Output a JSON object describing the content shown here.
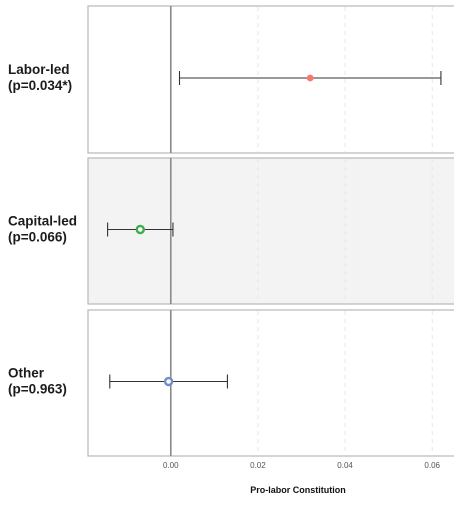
{
  "chart_data": {
    "type": "scatter",
    "subtype": "coefficient-plot-with-error-bars",
    "title": "",
    "xlabel": "Pro-labor Constitution",
    "ylabel": "",
    "xlim": [
      -0.019,
      0.065
    ],
    "x_ticks": [
      0.0,
      0.02,
      0.04,
      0.06
    ],
    "x_tick_labels": [
      "0.00",
      "0.02",
      "0.04",
      "0.06"
    ],
    "reference_line_x": 0,
    "grid": "dashed vertical gridlines",
    "legend": "none",
    "panels": [
      {
        "label_line1": "Labor-led",
        "label_line2": "(p=0.034*)",
        "estimate": 0.032,
        "ci_low": 0.002,
        "ci_high": 0.062,
        "point_color": "#f8766d",
        "point_style": "filled",
        "highlighted": false
      },
      {
        "label_line1": "Capital-led",
        "label_line2": "(p=0.066)",
        "estimate": -0.007,
        "ci_low": -0.0145,
        "ci_high": 0.0005,
        "point_color": "#3fae4a",
        "point_style": "ring",
        "highlighted": true
      },
      {
        "label_line1": "Other",
        "label_line2": "(p=0.963)",
        "estimate": -0.0005,
        "ci_low": -0.014,
        "ci_high": 0.013,
        "point_color": "#6f8fc8",
        "point_style": "ring",
        "highlighted": false
      }
    ],
    "colors": {
      "panel_border": "#b8b8b8",
      "highlight_bg": "#f3f3f3",
      "zero_line": "#8a8a8a",
      "grid": "#e6e6e6",
      "error_bar": "#333333"
    }
  }
}
